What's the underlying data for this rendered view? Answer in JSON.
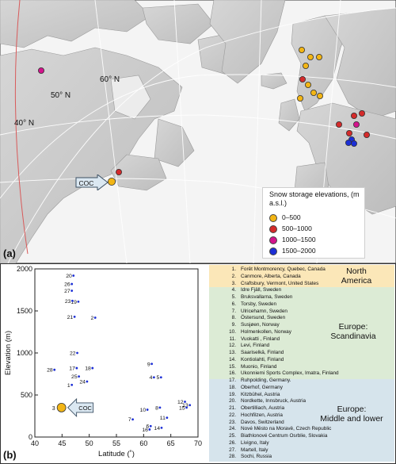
{
  "panel_a": {
    "label": "(a)",
    "latitude_labels": [
      "60° N",
      "50° N",
      "40° N"
    ],
    "coc_label": "COC",
    "legend": {
      "title": "Snow storage elevations, (m a.s.l.)",
      "items": [
        {
          "label": "0–500",
          "color": "#f2b515"
        },
        {
          "label": "500–1000",
          "color": "#d42b2b"
        },
        {
          "label": "1000–1500",
          "color": "#d3148c"
        },
        {
          "label": "1500–2000",
          "color": "#1c2fd6"
        }
      ]
    }
  },
  "panel_b": {
    "label": "(b)",
    "coc_label": "COC",
    "chart_data": {
      "type": "scatter",
      "xlabel": "Latitude (˚)",
      "ylabel": "Elevation (m)",
      "xlim": [
        40,
        70
      ],
      "ylim": [
        0,
        2000
      ],
      "xticks": [
        40,
        45,
        50,
        55,
        60,
        65,
        70
      ],
      "yticks": [
        0,
        500,
        1000,
        1500,
        2000
      ],
      "points": [
        {
          "id": "1",
          "lat": 46.8,
          "elev": 620
        },
        {
          "id": "2",
          "lat": 51.1,
          "elev": 1420
        },
        {
          "id": "3",
          "lat": 44.9,
          "elev": 350
        },
        {
          "id": "4",
          "lat": 61.9,
          "elev": 710
        },
        {
          "id": "5",
          "lat": 63.2,
          "elev": 710
        },
        {
          "id": "6",
          "lat": 61.3,
          "elev": 130
        },
        {
          "id": "7",
          "lat": 58.0,
          "elev": 210
        },
        {
          "id": "8",
          "lat": 63.0,
          "elev": 350
        },
        {
          "id": "9",
          "lat": 61.5,
          "elev": 870
        },
        {
          "id": "10",
          "lat": 60.7,
          "elev": 325
        },
        {
          "id": "11",
          "lat": 64.3,
          "elev": 230
        },
        {
          "id": "12",
          "lat": 67.6,
          "elev": 420
        },
        {
          "id": "13",
          "lat": 68.5,
          "elev": 380
        },
        {
          "id": "14",
          "lat": 63.3,
          "elev": 110
        },
        {
          "id": "15",
          "lat": 67.9,
          "elev": 350
        },
        {
          "id": "16",
          "lat": 61.1,
          "elev": 90
        },
        {
          "id": "17",
          "lat": 47.7,
          "elev": 820
        },
        {
          "id": "18",
          "lat": 50.6,
          "elev": 820
        },
        {
          "id": "19",
          "lat": 48.0,
          "elev": 1610
        },
        {
          "id": "20",
          "lat": 47.1,
          "elev": 1920
        },
        {
          "id": "21",
          "lat": 47.3,
          "elev": 1430
        },
        {
          "id": "22",
          "lat": 47.8,
          "elev": 1000
        },
        {
          "id": "23",
          "lat": 46.9,
          "elev": 1620
        },
        {
          "id": "24",
          "lat": 49.6,
          "elev": 660
        },
        {
          "id": "25",
          "lat": 48.1,
          "elev": 720
        },
        {
          "id": "26",
          "lat": 46.8,
          "elev": 1820
        },
        {
          "id": "27",
          "lat": 46.8,
          "elev": 1740
        },
        {
          "id": "28",
          "lat": 43.6,
          "elev": 800
        }
      ]
    },
    "sites": [
      {
        "num": "1.",
        "name": "Forêt Montmorency, Quebec, Canada"
      },
      {
        "num": "2.",
        "name": "Canmore, Alberta, Canada"
      },
      {
        "num": "3.",
        "name": "Craftsbury, Vermont, United States"
      },
      {
        "num": "4.",
        "name": "Idre Fjäll, Sweden"
      },
      {
        "num": "5.",
        "name": "Bruksvallarna, Sweden"
      },
      {
        "num": "6.",
        "name": "Torsby, Sweden"
      },
      {
        "num": "7.",
        "name": "Ulricehamn, Sweden"
      },
      {
        "num": "8.",
        "name": "Östersund, Sweden"
      },
      {
        "num": "9.",
        "name": "Susjøen, Norway"
      },
      {
        "num": "10.",
        "name": "Holmenkollen, Norway"
      },
      {
        "num": "11.",
        "name": "Vuokatti , Finland"
      },
      {
        "num": "12.",
        "name": "Levi, Finland"
      },
      {
        "num": "13.",
        "name": "Saariselkä, Finland"
      },
      {
        "num": "14.",
        "name": "Kontiolahti, Finland"
      },
      {
        "num": "15.",
        "name": "Muonio, Finland"
      },
      {
        "num": "16.",
        "name": "Ukonniemi Sports Complex, Imatra, Finland"
      },
      {
        "num": "17.",
        "name": "Ruhpolding, Germany."
      },
      {
        "num": "18.",
        "name": "Oberhof, Germany"
      },
      {
        "num": "19.",
        "name": "Kitzbühel, Austria"
      },
      {
        "num": "20.",
        "name": "Nordkette, Innsbruck, Austria"
      },
      {
        "num": "21.",
        "name": "Obertilliach, Austria"
      },
      {
        "num": "22.",
        "name": "Hochfilzen, Austria"
      },
      {
        "num": "23.",
        "name": "Davos, Switzerland"
      },
      {
        "num": "24.",
        "name": "Nové Město na Moravě, Czech Republic"
      },
      {
        "num": "25.",
        "name": "Biathlonové Centrum Osrblie, Slovakia"
      },
      {
        "num": "26.",
        "name": "Livigno, Italy"
      },
      {
        "num": "27.",
        "name": "Martell, Italy"
      },
      {
        "num": "28.",
        "name": "Sochi, Russia"
      }
    ],
    "regions": [
      {
        "label": "North\nAmerica",
        "color": "#fbe7b8"
      },
      {
        "label": "Europe:\nScandinavia",
        "color": "#dcebd5"
      },
      {
        "label": "Europe:\nMiddle and lower",
        "color": "#d6e4ec"
      }
    ]
  }
}
